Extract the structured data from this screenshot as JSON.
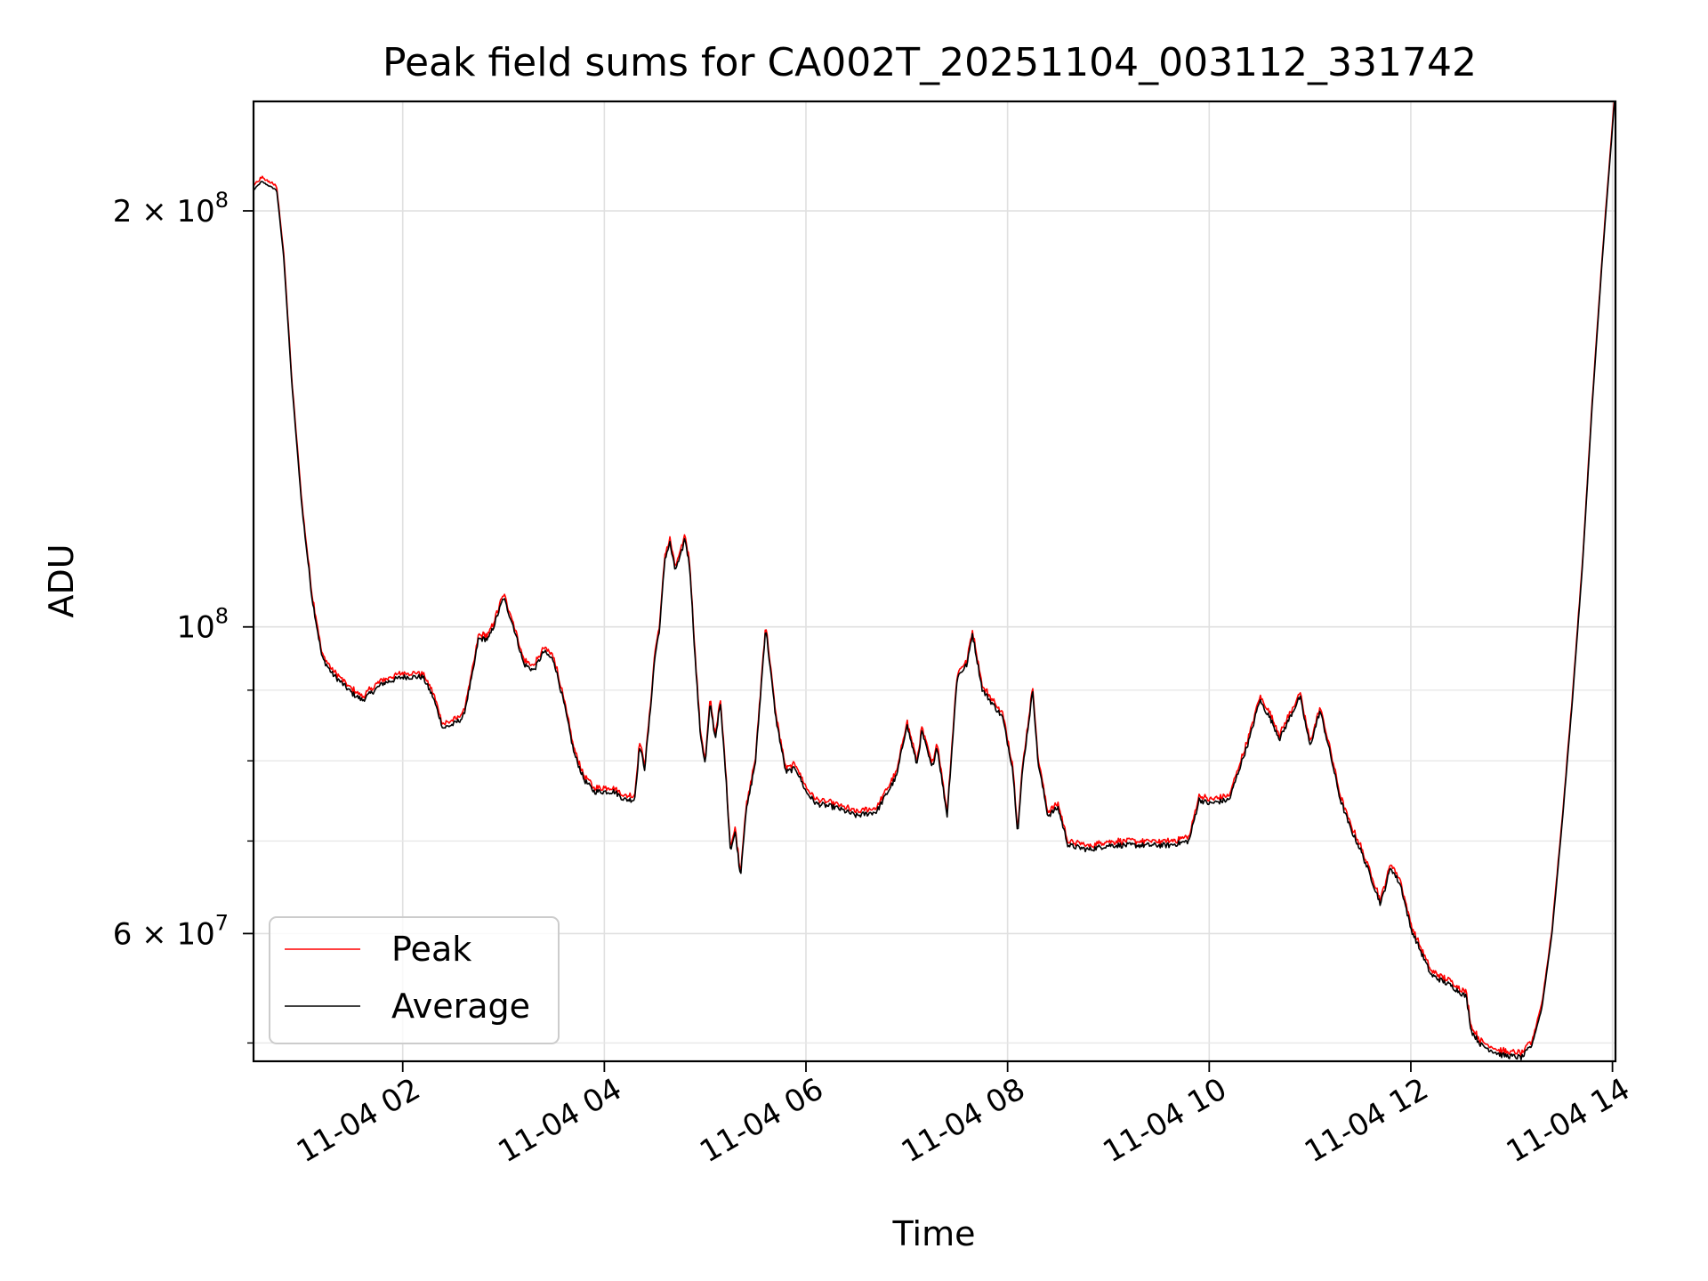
{
  "chart_data": {
    "type": "line",
    "title": "Peak field sums for CA002T_20251104_003112_331742",
    "xlabel": "Time",
    "ylabel": "ADU",
    "yscale": "log",
    "ylim": [
      48500000,
      240000000
    ],
    "xlim_hours": [
      0.52,
      14.03
    ],
    "grid": true,
    "legend_position": "lower-left",
    "x_ticks": [
      {
        "hour": 2,
        "label": "11-04 02"
      },
      {
        "hour": 4,
        "label": "11-04 04"
      },
      {
        "hour": 6,
        "label": "11-04 06"
      },
      {
        "hour": 8,
        "label": "11-04 08"
      },
      {
        "hour": 10,
        "label": "11-04 10"
      },
      {
        "hour": 12,
        "label": "11-04 12"
      },
      {
        "hour": 14,
        "label": "11-04 14"
      }
    ],
    "y_major_ticks": [
      {
        "value": 200000000,
        "mantissa": "2",
        "exponent": "8",
        "label": "2 × 10^8"
      },
      {
        "value": 100000000,
        "mantissa": "",
        "exponent": "8",
        "label": "10^8"
      },
      {
        "value": 60000000,
        "mantissa": "6",
        "exponent": "7",
        "label": "6 × 10^7"
      }
    ],
    "y_minor_ticks": [
      50000000,
      70000000,
      80000000,
      90000000
    ],
    "series": [
      {
        "name": "Peak",
        "color": "#ff0000",
        "offset_ratio": 1.006
      },
      {
        "name": "Average",
        "color": "#000000",
        "offset_ratio": 1.0
      }
    ],
    "base_points": [
      [
        0.52,
        207000000.0
      ],
      [
        0.6,
        210000000.0
      ],
      [
        0.75,
        207000000.0
      ],
      [
        0.82,
        185000000.0
      ],
      [
        0.9,
        150000000.0
      ],
      [
        1.0,
        122000000.0
      ],
      [
        1.1,
        105000000.0
      ],
      [
        1.2,
        95000000.0
      ],
      [
        1.3,
        92500000.0
      ],
      [
        1.5,
        89500000.0
      ],
      [
        1.6,
        88500000.0
      ],
      [
        1.8,
        91000000.0
      ],
      [
        2.0,
        92000000.0
      ],
      [
        2.2,
        92000000.0
      ],
      [
        2.3,
        89000000.0
      ],
      [
        2.4,
        84500000.0
      ],
      [
        2.5,
        85000000.0
      ],
      [
        2.6,
        86000000.0
      ],
      [
        2.7,
        93000000.0
      ],
      [
        2.75,
        98000000.0
      ],
      [
        2.85,
        98000000.0
      ],
      [
        2.9,
        100000000.0
      ],
      [
        3.0,
        105000000.0
      ],
      [
        3.1,
        100000000.0
      ],
      [
        3.2,
        94000000.0
      ],
      [
        3.3,
        93000000.0
      ],
      [
        3.4,
        96000000.0
      ],
      [
        3.5,
        94500000.0
      ],
      [
        3.6,
        88000000.0
      ],
      [
        3.7,
        81000000.0
      ],
      [
        3.8,
        77500000.0
      ],
      [
        3.9,
        76000000.0
      ],
      [
        4.0,
        76000000.0
      ],
      [
        4.1,
        76000000.0
      ],
      [
        4.2,
        75000000.0
      ],
      [
        4.3,
        75000000.0
      ],
      [
        4.35,
        82000000.0
      ],
      [
        4.4,
        79000000.0
      ],
      [
        4.45,
        86000000.0
      ],
      [
        4.5,
        95000000.0
      ],
      [
        4.55,
        100000000.0
      ],
      [
        4.6,
        112000000.0
      ],
      [
        4.65,
        115000000.0
      ],
      [
        4.7,
        110000000.0
      ],
      [
        4.75,
        112000000.0
      ],
      [
        4.8,
        116000000.0
      ],
      [
        4.85,
        110000000.0
      ],
      [
        4.9,
        95000000.0
      ],
      [
        4.95,
        84000000.0
      ],
      [
        5.0,
        79500000.0
      ],
      [
        5.05,
        88000000.0
      ],
      [
        5.1,
        83000000.0
      ],
      [
        5.15,
        88000000.0
      ],
      [
        5.2,
        79000000.0
      ],
      [
        5.25,
        69000000.0
      ],
      [
        5.3,
        71000000.0
      ],
      [
        5.35,
        66000000.0
      ],
      [
        5.4,
        73000000.0
      ],
      [
        5.5,
        80000000.0
      ],
      [
        5.6,
        100000000.0
      ],
      [
        5.7,
        86000000.0
      ],
      [
        5.8,
        78500000.0
      ],
      [
        5.9,
        79000000.0
      ],
      [
        6.0,
        76000000.0
      ],
      [
        6.1,
        74500000.0
      ],
      [
        6.3,
        74000000.0
      ],
      [
        6.5,
        73000000.0
      ],
      [
        6.7,
        73500000.0
      ],
      [
        6.9,
        78000000.0
      ],
      [
        7.0,
        85000000.0
      ],
      [
        7.1,
        79500000.0
      ],
      [
        7.15,
        84000000.0
      ],
      [
        7.25,
        79000000.0
      ],
      [
        7.3,
        82000000.0
      ],
      [
        7.4,
        73000000.0
      ],
      [
        7.5,
        92000000.0
      ],
      [
        7.6,
        94000000.0
      ],
      [
        7.65,
        99000000.0
      ],
      [
        7.75,
        90000000.0
      ],
      [
        7.85,
        88000000.0
      ],
      [
        7.95,
        86000000.0
      ],
      [
        8.05,
        79000000.0
      ],
      [
        8.1,
        71000000.0
      ],
      [
        8.15,
        79000000.0
      ],
      [
        8.25,
        90000000.0
      ],
      [
        8.3,
        80000000.0
      ],
      [
        8.4,
        73000000.0
      ],
      [
        8.5,
        74000000.0
      ],
      [
        8.6,
        69500000.0
      ],
      [
        8.8,
        69000000.0
      ],
      [
        9.0,
        69500000.0
      ],
      [
        9.3,
        69500000.0
      ],
      [
        9.6,
        69500000.0
      ],
      [
        9.8,
        70000000.0
      ],
      [
        9.9,
        75000000.0
      ],
      [
        10.0,
        74500000.0
      ],
      [
        10.2,
        75000000.0
      ],
      [
        10.3,
        79000000.0
      ],
      [
        10.4,
        83000000.0
      ],
      [
        10.5,
        88500000.0
      ],
      [
        10.6,
        86000000.0
      ],
      [
        10.7,
        83000000.0
      ],
      [
        10.8,
        86000000.0
      ],
      [
        10.9,
        89000000.0
      ],
      [
        11.0,
        82000000.0
      ],
      [
        11.1,
        87000000.0
      ],
      [
        11.2,
        81000000.0
      ],
      [
        11.3,
        75000000.0
      ],
      [
        11.4,
        71500000.0
      ],
      [
        11.5,
        69000000.0
      ],
      [
        11.6,
        66000000.0
      ],
      [
        11.7,
        63000000.0
      ],
      [
        11.8,
        67000000.0
      ],
      [
        11.9,
        65000000.0
      ],
      [
        12.0,
        60500000.0
      ],
      [
        12.2,
        56000000.0
      ],
      [
        12.4,
        55000000.0
      ],
      [
        12.55,
        54000000.0
      ],
      [
        12.6,
        51000000.0
      ],
      [
        12.7,
        49800000.0
      ],
      [
        12.9,
        49000000.0
      ],
      [
        13.1,
        48800000.0
      ],
      [
        13.2,
        49800000.0
      ],
      [
        13.3,
        53000000.0
      ],
      [
        13.4,
        60000000.0
      ],
      [
        13.5,
        72000000.0
      ],
      [
        13.6,
        88000000.0
      ],
      [
        13.7,
        110000000.0
      ],
      [
        13.8,
        145000000.0
      ],
      [
        13.9,
        185000000.0
      ],
      [
        14.03,
        245000000.0
      ]
    ]
  }
}
